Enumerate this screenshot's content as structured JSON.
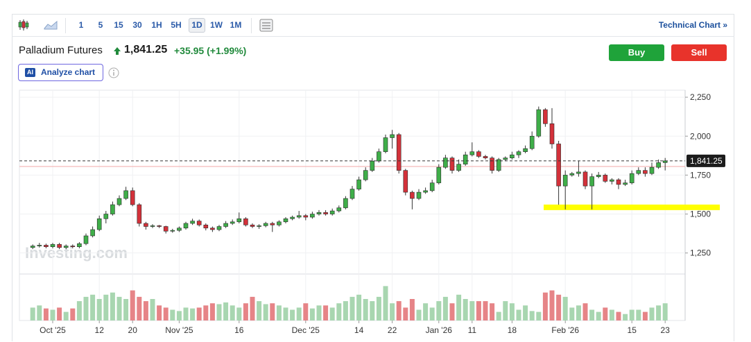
{
  "toolbar": {
    "intervals": [
      "1",
      "5",
      "15",
      "30",
      "1H",
      "5H",
      "1D",
      "1W",
      "1M"
    ],
    "active_interval": 6,
    "technical_link": "Technical Chart »"
  },
  "quote": {
    "name": "Palladium Futures",
    "price": "1,841.25",
    "change": "+35.95",
    "change_pct": "(+1.99%)",
    "buy": "Buy",
    "sell": "Sell",
    "ai_badge": "AI",
    "analyze": "Analyze chart"
  },
  "chart_data": {
    "type": "candlestick",
    "watermark": "Investing.com",
    "ylim": [
      1115,
      2295
    ],
    "yticks": [
      {
        "value": 1250,
        "label": "1,250"
      },
      {
        "value": 1500,
        "label": "1,500"
      },
      {
        "value": 1750,
        "label": "1,750"
      },
      {
        "value": 2000,
        "label": "2,000"
      },
      {
        "value": 2250,
        "label": "2,250"
      }
    ],
    "xlim": [
      -2,
      98
    ],
    "xticks": [
      {
        "value": 3,
        "label": "Oct '25"
      },
      {
        "value": 10,
        "label": "12"
      },
      {
        "value": 15,
        "label": "20"
      },
      {
        "value": 22,
        "label": "Nov '25"
      },
      {
        "value": 31,
        "label": "16"
      },
      {
        "value": 41,
        "label": "Dec '25"
      },
      {
        "value": 49,
        "label": "14"
      },
      {
        "value": 54,
        "label": "22"
      },
      {
        "value": 61,
        "label": "Jan '26"
      },
      {
        "value": 66,
        "label": "11"
      },
      {
        "value": 72,
        "label": "18"
      },
      {
        "value": 80,
        "label": "Feb '26"
      },
      {
        "value": 90,
        "label": "15"
      },
      {
        "value": 95,
        "label": "23"
      }
    ],
    "grid": true,
    "up_color": "#3fae49",
    "down_color": "#d3313a",
    "volume_up_color": "#a8d6b0",
    "volume_down_color": "#e68487",
    "last_price": {
      "value": 1841.25,
      "label": "1,841.25"
    },
    "prev_close_line": 1805.3,
    "highlight_level": 1543,
    "highlight_color": "#ffff00",
    "vlim": [
      0,
      100
    ],
    "open": [
      1285,
      1295,
      1300,
      1290,
      1305,
      1285,
      1295,
      1290,
      1310,
      1360,
      1400,
      1470,
      1500,
      1560,
      1600,
      1650,
      1560,
      1440,
      1420,
      1425,
      1420,
      1390,
      1395,
      1410,
      1440,
      1455,
      1430,
      1410,
      1400,
      1420,
      1440,
      1450,
      1470,
      1430,
      1420,
      1425,
      1440,
      1430,
      1450,
      1470,
      1480,
      1490,
      1480,
      1500,
      1510,
      1500,
      1520,
      1540,
      1600,
      1660,
      1720,
      1780,
      1840,
      1900,
      1990,
      2010,
      1780,
      1640,
      1600,
      1640,
      1650,
      1700,
      1800,
      1860,
      1780,
      1820,
      1880,
      1900,
      1870,
      1860,
      1780,
      1850,
      1860,
      1880,
      1900,
      1920,
      2000,
      2170,
      2080,
      1950,
      1680,
      1750,
      1760,
      1770,
      1680,
      1740,
      1750,
      1710,
      1720,
      1690,
      1700,
      1760,
      1780,
      1760,
      1800,
      1830
    ],
    "high": [
      1305,
      1315,
      1310,
      1315,
      1315,
      1305,
      1305,
      1320,
      1375,
      1420,
      1490,
      1520,
      1580,
      1620,
      1675,
      1670,
      1570,
      1450,
      1435,
      1430,
      1425,
      1405,
      1420,
      1450,
      1470,
      1465,
      1440,
      1420,
      1430,
      1455,
      1465,
      1510,
      1480,
      1440,
      1435,
      1450,
      1450,
      1460,
      1480,
      1490,
      1520,
      1500,
      1515,
      1525,
      1525,
      1535,
      1555,
      1615,
      1680,
      1740,
      1800,
      1860,
      1920,
      2010,
      2040,
      2020,
      1790,
      1650,
      1660,
      1670,
      1720,
      1820,
      1880,
      1870,
      1850,
      1900,
      1960,
      1910,
      1880,
      1870,
      1860,
      1870,
      1900,
      1910,
      1940,
      2030,
      2190,
      2180,
      2180,
      1970,
      1780,
      1770,
      1840,
      1780,
      1760,
      1770,
      1760,
      1730,
      1730,
      1720,
      1780,
      1800,
      1800,
      1830,
      1850,
      1860
    ],
    "low": [
      1275,
      1285,
      1280,
      1280,
      1275,
      1275,
      1280,
      1280,
      1300,
      1350,
      1390,
      1440,
      1490,
      1550,
      1590,
      1550,
      1420,
      1400,
      1410,
      1410,
      1375,
      1380,
      1385,
      1400,
      1430,
      1420,
      1395,
      1385,
      1390,
      1410,
      1430,
      1440,
      1420,
      1410,
      1405,
      1415,
      1385,
      1420,
      1440,
      1460,
      1470,
      1460,
      1470,
      1490,
      1490,
      1490,
      1510,
      1530,
      1590,
      1650,
      1710,
      1770,
      1830,
      1890,
      1920,
      1760,
      1620,
      1530,
      1590,
      1630,
      1640,
      1690,
      1790,
      1760,
      1770,
      1810,
      1870,
      1860,
      1850,
      1760,
      1770,
      1840,
      1850,
      1860,
      1890,
      1910,
      1990,
      2060,
      1920,
      1560,
      1530,
      1740,
      1740,
      1660,
      1530,
      1730,
      1700,
      1690,
      1660,
      1680,
      1690,
      1750,
      1740,
      1750,
      1790,
      1780
    ],
    "close": [
      1295,
      1300,
      1290,
      1305,
      1285,
      1295,
      1290,
      1310,
      1360,
      1400,
      1470,
      1500,
      1560,
      1600,
      1650,
      1560,
      1440,
      1420,
      1425,
      1420,
      1390,
      1395,
      1410,
      1440,
      1455,
      1430,
      1410,
      1400,
      1420,
      1440,
      1450,
      1470,
      1430,
      1420,
      1425,
      1440,
      1430,
      1450,
      1470,
      1480,
      1490,
      1480,
      1500,
      1510,
      1500,
      1520,
      1540,
      1600,
      1660,
      1720,
      1780,
      1840,
      1900,
      1990,
      2010,
      1780,
      1640,
      1600,
      1640,
      1650,
      1700,
      1800,
      1860,
      1780,
      1820,
      1880,
      1900,
      1870,
      1860,
      1780,
      1850,
      1860,
      1880,
      1900,
      1920,
      2000,
      2170,
      2080,
      1950,
      1680,
      1750,
      1760,
      1770,
      1680,
      1740,
      1750,
      1710,
      1720,
      1690,
      1700,
      1760,
      1780,
      1760,
      1800,
      1830,
      1841.25
    ],
    "volume": [
      30,
      35,
      28,
      25,
      30,
      20,
      28,
      45,
      55,
      60,
      50,
      60,
      65,
      55,
      50,
      70,
      55,
      45,
      50,
      35,
      30,
      25,
      22,
      30,
      28,
      30,
      35,
      40,
      38,
      42,
      35,
      30,
      40,
      55,
      45,
      38,
      40,
      35,
      30,
      25,
      30,
      40,
      28,
      35,
      35,
      30,
      40,
      45,
      55,
      60,
      50,
      45,
      55,
      80,
      40,
      45,
      30,
      50,
      25,
      40,
      30,
      45,
      55,
      40,
      60,
      50,
      45,
      45,
      45,
      40,
      20,
      45,
      40,
      25,
      35,
      22,
      20,
      65,
      70,
      60,
      55,
      30,
      35,
      40,
      25,
      20,
      30,
      25,
      20,
      15,
      25,
      25,
      20,
      30,
      35,
      40
    ]
  }
}
